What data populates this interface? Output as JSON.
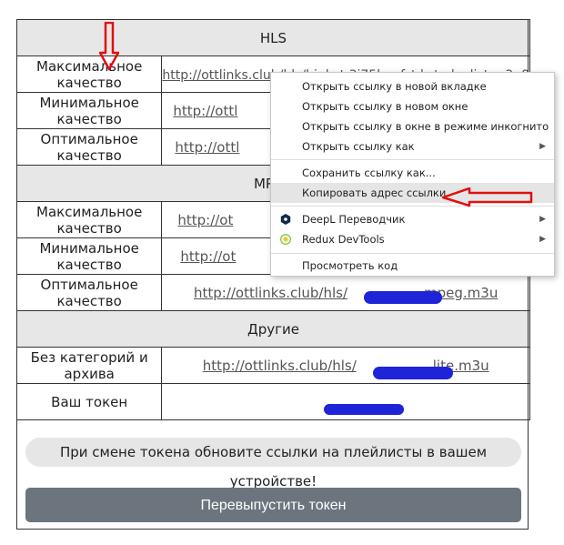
{
  "sections": {
    "hls": "HLS",
    "mpeg": "MPEG",
    "other": "Другие"
  },
  "rows": {
    "max": "Максимальное качество",
    "min": "Минимальное качество",
    "opt": "Оптимальное качество",
    "nocat": "Без категорий и архива",
    "token": "Ваш токен"
  },
  "links": {
    "hls_max": "http://ottlinks.club/hls/high_t 3i75k... f_t k_t playlist.m3u8",
    "hls_min": "http://ottl",
    "hls_opt": "http://ottl",
    "mpeg_max": "http://ot",
    "mpeg_min": "http://ot",
    "mpeg_opt_prefix": "http://ottlinks.club/hls/",
    "mpeg_opt_suffix": "mpeg.m3u",
    "other_prefix": "http://ottlinks.club/hls/",
    "other_suffix": "lite.m3u"
  },
  "notice": "При смене токена обновите ссылки на плейлисты в вашем устройстве!",
  "reissue_button": "Перевыпустить токен",
  "context_menu": {
    "items": [
      "Открыть ссылку в новой вкладке",
      "Открыть ссылку в новом окне",
      "Открыть ссылку в окне в режиме инкогнито",
      "Открыть ссылку как",
      "Сохранить ссылку как...",
      "Копировать адрес ссылки",
      "DeepL Переводчик",
      "Redux DevTools",
      "Просмотреть код"
    ]
  },
  "colors": {
    "annotation": "#e01010",
    "redaction": "#1f24d8",
    "button": "#6c757d"
  }
}
